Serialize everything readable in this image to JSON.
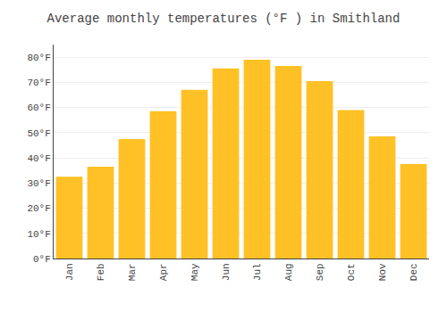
{
  "chart_data": {
    "type": "bar",
    "title": "Average monthly temperatures (°F ) in Smithland",
    "categories": [
      "Jan",
      "Feb",
      "Mar",
      "Apr",
      "May",
      "Jun",
      "Jul",
      "Aug",
      "Sep",
      "Oct",
      "Nov",
      "Dec"
    ],
    "values": [
      32.5,
      36.5,
      47.5,
      58.5,
      67.0,
      75.5,
      79.0,
      76.5,
      70.5,
      59.0,
      48.5,
      37.5
    ],
    "color": "#FFC125",
    "ylim": [
      0,
      85
    ],
    "yticks": [
      {
        "value": 0,
        "label": "0°F"
      },
      {
        "value": 10,
        "label": "10°F"
      },
      {
        "value": 20,
        "label": "20°F"
      },
      {
        "value": 30,
        "label": "30°F"
      },
      {
        "value": 40,
        "label": "40°F"
      },
      {
        "value": 50,
        "label": "50°F"
      },
      {
        "value": 60,
        "label": "60°F"
      },
      {
        "value": 70,
        "label": "70°F"
      },
      {
        "value": 80,
        "label": "80°F"
      }
    ],
    "grid": true
  }
}
